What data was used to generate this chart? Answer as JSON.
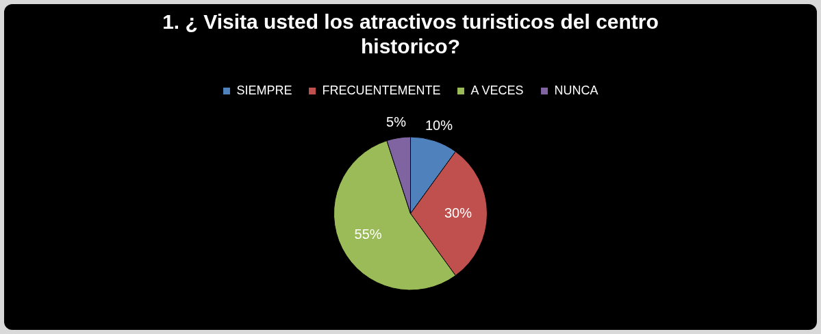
{
  "chart_data": {
    "type": "pie",
    "title": "1. ¿ Visita usted los atractivos turisticos del centro historico?",
    "categories": [
      "SIEMPRE",
      "FRECUENTEMENTE",
      "A VECES",
      "NUNCA"
    ],
    "values": [
      10,
      30,
      55,
      5
    ],
    "colors": [
      "#4f81bd",
      "#c0504d",
      "#9bbb59",
      "#8064a2"
    ],
    "value_labels": [
      "10%",
      "30%",
      "55%",
      "5%"
    ],
    "legend": "top"
  }
}
